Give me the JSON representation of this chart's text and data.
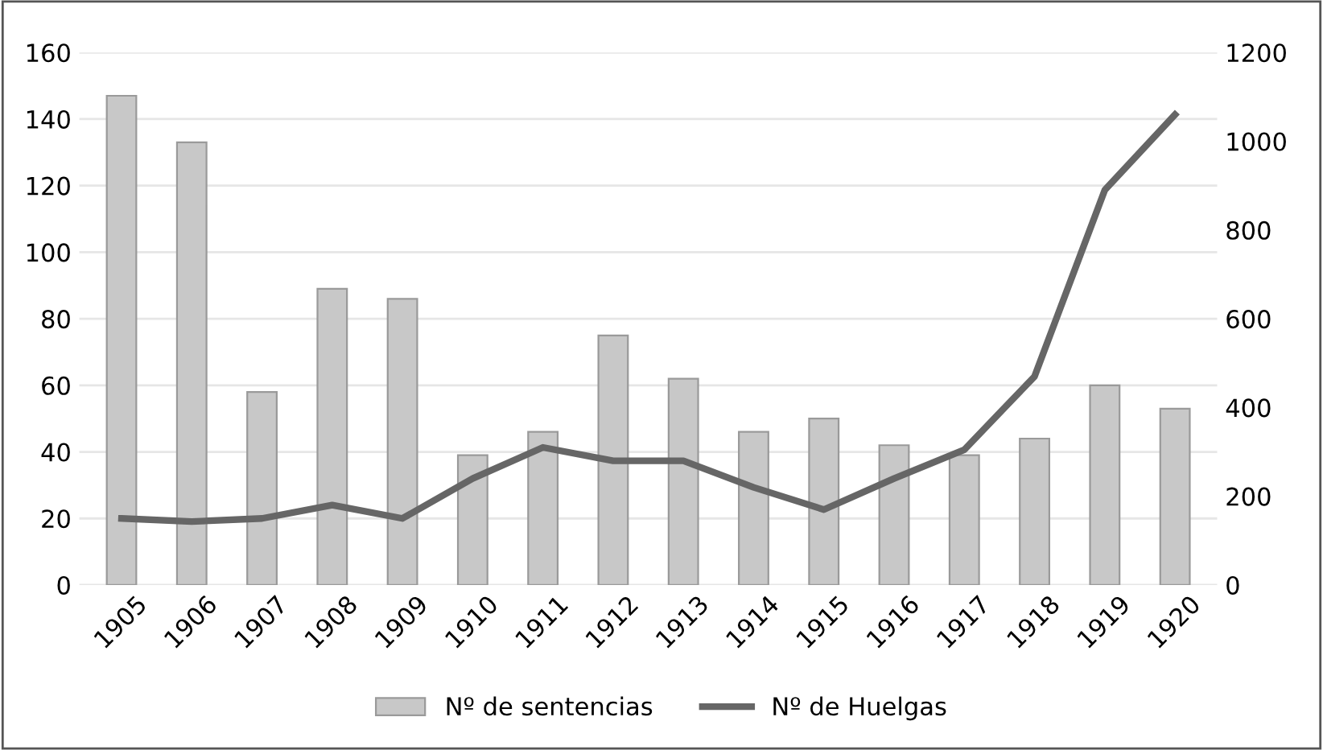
{
  "chart_data": {
    "type": "bar",
    "categories": [
      "1905",
      "1906",
      "1907",
      "1908",
      "1909",
      "1910",
      "1911",
      "1912",
      "1913",
      "1914",
      "1915",
      "1916",
      "1917",
      "1918",
      "1919",
      "1920"
    ],
    "series": [
      {
        "name": "Nº de sentencias",
        "color": "#c8c8c8",
        "values": [
          147,
          133,
          58,
          89,
          86,
          39,
          46,
          75,
          62,
          46,
          50,
          42,
          39,
          44,
          60,
          53
        ]
      },
      {
        "name": "Nº de Huelgas",
        "type": "line",
        "axis": "y2",
        "color": "#666666",
        "values": [
          150,
          143,
          150,
          180,
          150,
          240,
          310,
          280,
          280,
          220,
          170,
          240,
          305,
          470,
          890,
          1060
        ]
      }
    ],
    "ylim": [
      0,
      160
    ],
    "yticks": [
      0,
      20,
      40,
      60,
      80,
      100,
      120,
      140,
      160
    ],
    "y2lim": [
      0,
      1200
    ],
    "y2ticks": [
      0,
      200,
      400,
      600,
      800,
      1000,
      1200
    ],
    "grid": "y",
    "legend": "bottom"
  }
}
